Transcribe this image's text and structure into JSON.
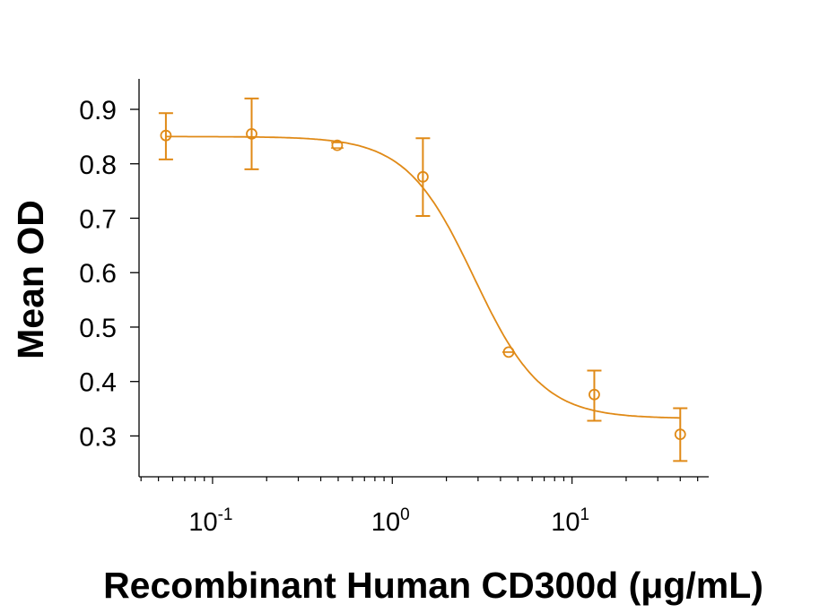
{
  "chart_data": {
    "type": "scatter",
    "xlabel": "Recombinant Human CD300d (μg/mL)",
    "ylabel": "Mean OD",
    "xscale": "log",
    "xlim": [
      0.039,
      57.6
    ],
    "ylim": [
      0.225,
      0.956
    ],
    "x_ticks": [
      {
        "base": "10",
        "exp": "-1",
        "value": 0.1
      },
      {
        "base": "10",
        "exp": "0",
        "value": 1
      },
      {
        "base": "10",
        "exp": "1",
        "value": 10
      }
    ],
    "y_ticks": [
      "0.3",
      "0.4",
      "0.5",
      "0.6",
      "0.7",
      "0.8",
      "0.9"
    ],
    "grid": false,
    "color": "#E08A17",
    "points": [
      {
        "x": 0.055,
        "y": 0.852,
        "err_low": 0.808,
        "err_high": 0.893
      },
      {
        "x": 0.165,
        "y": 0.855,
        "err_low": 0.79,
        "err_high": 0.92
      },
      {
        "x": 0.494,
        "y": 0.834,
        "err_low": 0.829,
        "err_high": 0.839
      },
      {
        "x": 1.48,
        "y": 0.776,
        "err_low": 0.704,
        "err_high": 0.847
      },
      {
        "x": 4.44,
        "y": 0.454,
        "err_low": 0.454,
        "err_high": 0.454
      },
      {
        "x": 13.3,
        "y": 0.376,
        "err_low": 0.328,
        "err_high": 0.42
      },
      {
        "x": 40.0,
        "y": 0.303,
        "err_low": 0.254,
        "err_high": 0.351
      }
    ],
    "fit_curve": {
      "model": "4PL",
      "top": 0.85,
      "bottom": 0.332,
      "ec50": 2.85,
      "hill": 2.3
    }
  }
}
